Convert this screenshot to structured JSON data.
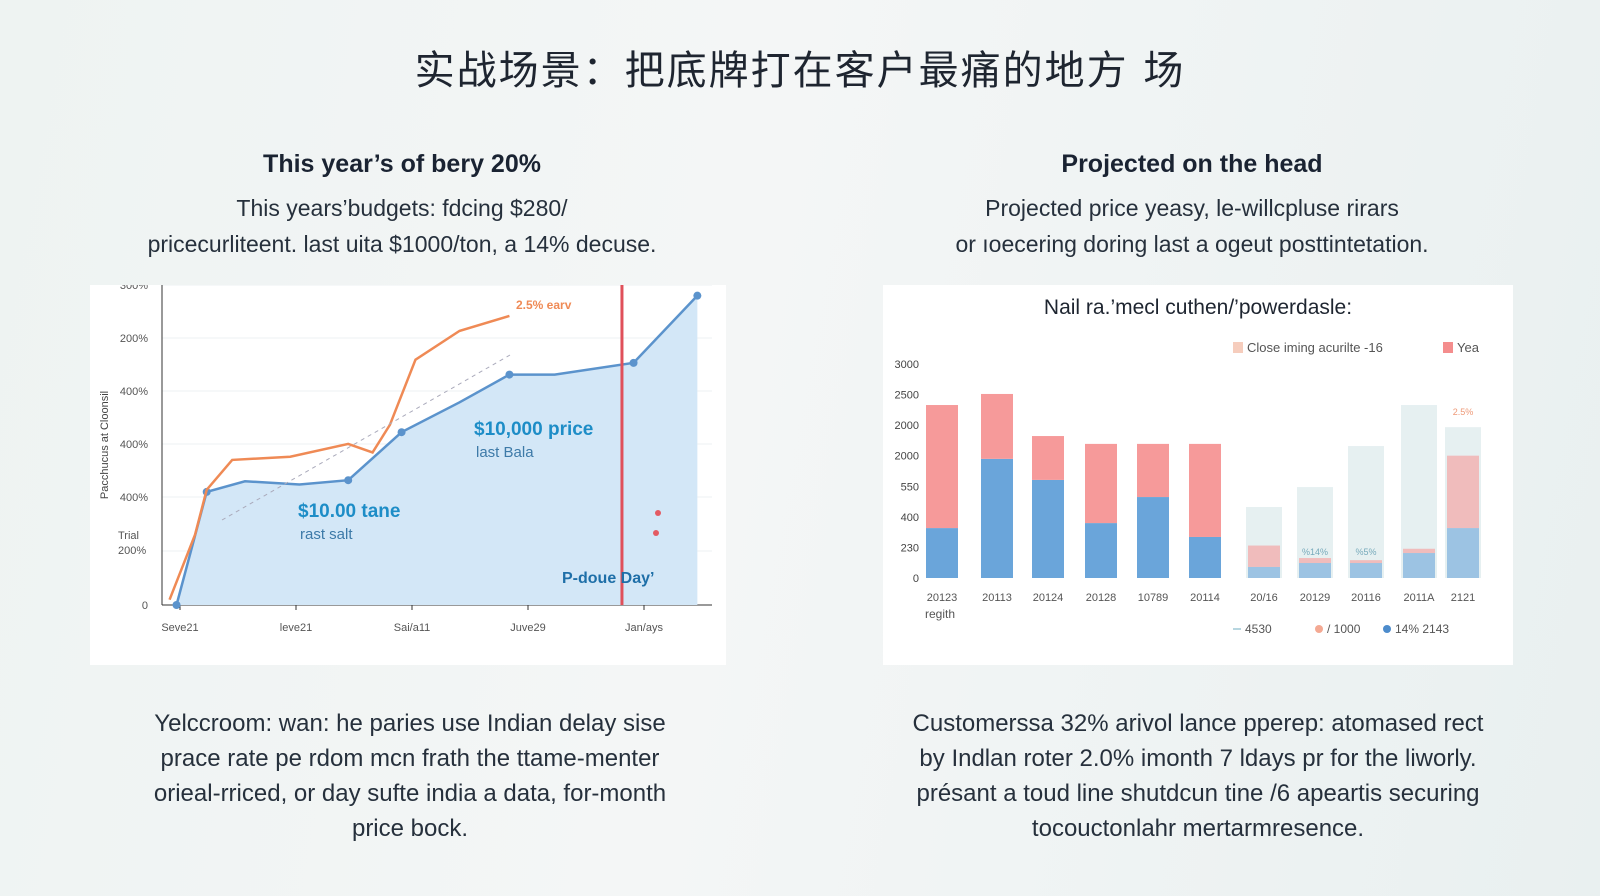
{
  "title": "实战场景：把底牌打在客户最痛的地方 场",
  "left": {
    "heading": "This year’s of bery 20%",
    "subtitle": [
      "This years’budgets: fdcing $280/",
      "pricecurliteent. last uita $1000/ton, a 14% decuse."
    ],
    "footer": [
      "Yelccroom: wan: he paries use Indian delay sise",
      "prace rate pe rdom mcn frath the ttame-menter",
      "orieal-rriced, or day sufte  india a data, for-month",
      "price bock."
    ]
  },
  "right": {
    "heading": "Projected on the head",
    "subtitle": [
      "Projected price yeasy, le-willcpluse rirars",
      "or ıoecering doring last a ogeut posttintetation."
    ],
    "footer": [
      "Customerssa 32% arivol lance pperep: atomased rect",
      "by Indlan roter 2.0% imonth 7 ldays pr for the liworly.",
      "présant a toud line shutdcun tine /6 apeartis securing",
      "tocouctonlahr mertarmresence."
    ]
  },
  "chart_data": [
    {
      "type": "line",
      "ylabel": "Pacchucus at Cloonsil",
      "y_tick_labels": [
        "0",
        "Trial 200%",
        "400%",
        "400%",
        "400%",
        "200%",
        "300%"
      ],
      "x_tick_labels": [
        "Seve21",
        "leve21",
        "Sai/a11",
        "Juve29",
        "Jan/ays"
      ],
      "grid": true,
      "series": [
        {
          "color": "#5b93cc",
          "fill": "#d3e7f7",
          "x": [
            -0.03,
            0.23,
            0.56,
            1.03,
            1.45,
            1.91,
            2.41,
            2.84,
            3.23,
            3.91,
            4.46
          ],
          "y": [
            0,
            106,
            116,
            113,
            117,
            162,
            190,
            216,
            216,
            227,
            290
          ]
        },
        {
          "color": "#ef8a55",
          "x": [
            -0.09,
            0.13,
            0.23,
            0.45,
            0.95,
            1.45,
            1.66,
            1.81,
            2.03,
            2.41,
            2.84
          ],
          "y": [
            5,
            66,
            108,
            136,
            139,
            151,
            143,
            169,
            230,
            257,
            271
          ]
        }
      ],
      "annotations": [
        {
          "text": "2.5% earv",
          "color": "#ef8a55"
        },
        {
          "text": "$10,000 price",
          "sub": "last Bala"
        },
        {
          "text": "$10.00 tane",
          "sub": "rast salt"
        },
        {
          "text": "P-doue Day’"
        }
      ],
      "vline": {
        "x": 3.81,
        "color": "#e0505a"
      }
    },
    {
      "type": "bar",
      "stacked": true,
      "title": "Nail ra.’mecl cuthen/’powerdasle:",
      "xlabel": "regith",
      "y_tick_labels": [
        "0",
        "230",
        "400",
        "550",
        "2000",
        "2000",
        "2500",
        "3000"
      ],
      "ylim": [
        0,
        3000
      ],
      "legend": [
        {
          "label": "Close iming acurilte -16",
          "color": "#f6cdbd"
        },
        {
          "label": "Yea",
          "color": "#f48d8d"
        }
      ],
      "legend_bottom": [
        {
          "label": "4530",
          "color": "#b7d6e0"
        },
        {
          "label": "/ 1000",
          "color": "#f4a993"
        },
        {
          "label": "14% 2143",
          "color": "#4d8ccc"
        }
      ],
      "categories": [
        "20123",
        "20113",
        "20124",
        "20128",
        "10789",
        "20114",
        "20/16",
        "20129",
        "20116",
        "2011A",
        "2121"
      ],
      "series": [
        {
          "name": "base",
          "color": "#6aa5da",
          "values": [
            700,
            1670,
            1375,
            770,
            1135,
            575,
            155,
            210,
            210,
            350,
            700
          ]
        },
        {
          "name": "top",
          "color": "#f69a9a",
          "values": [
            1725,
            910,
            615,
            1110,
            745,
            1305,
            300,
            70,
            40,
            60,
            1015
          ]
        }
      ],
      "faded_totals": [
        null,
        null,
        null,
        null,
        null,
        null,
        995,
        1275,
        1850,
        2425,
        2115
      ],
      "bar_labels": [
        "",
        "",
        "",
        "",
        "",
        "",
        "",
        "%14%",
        "%5%",
        "",
        "2.5%"
      ]
    }
  ]
}
